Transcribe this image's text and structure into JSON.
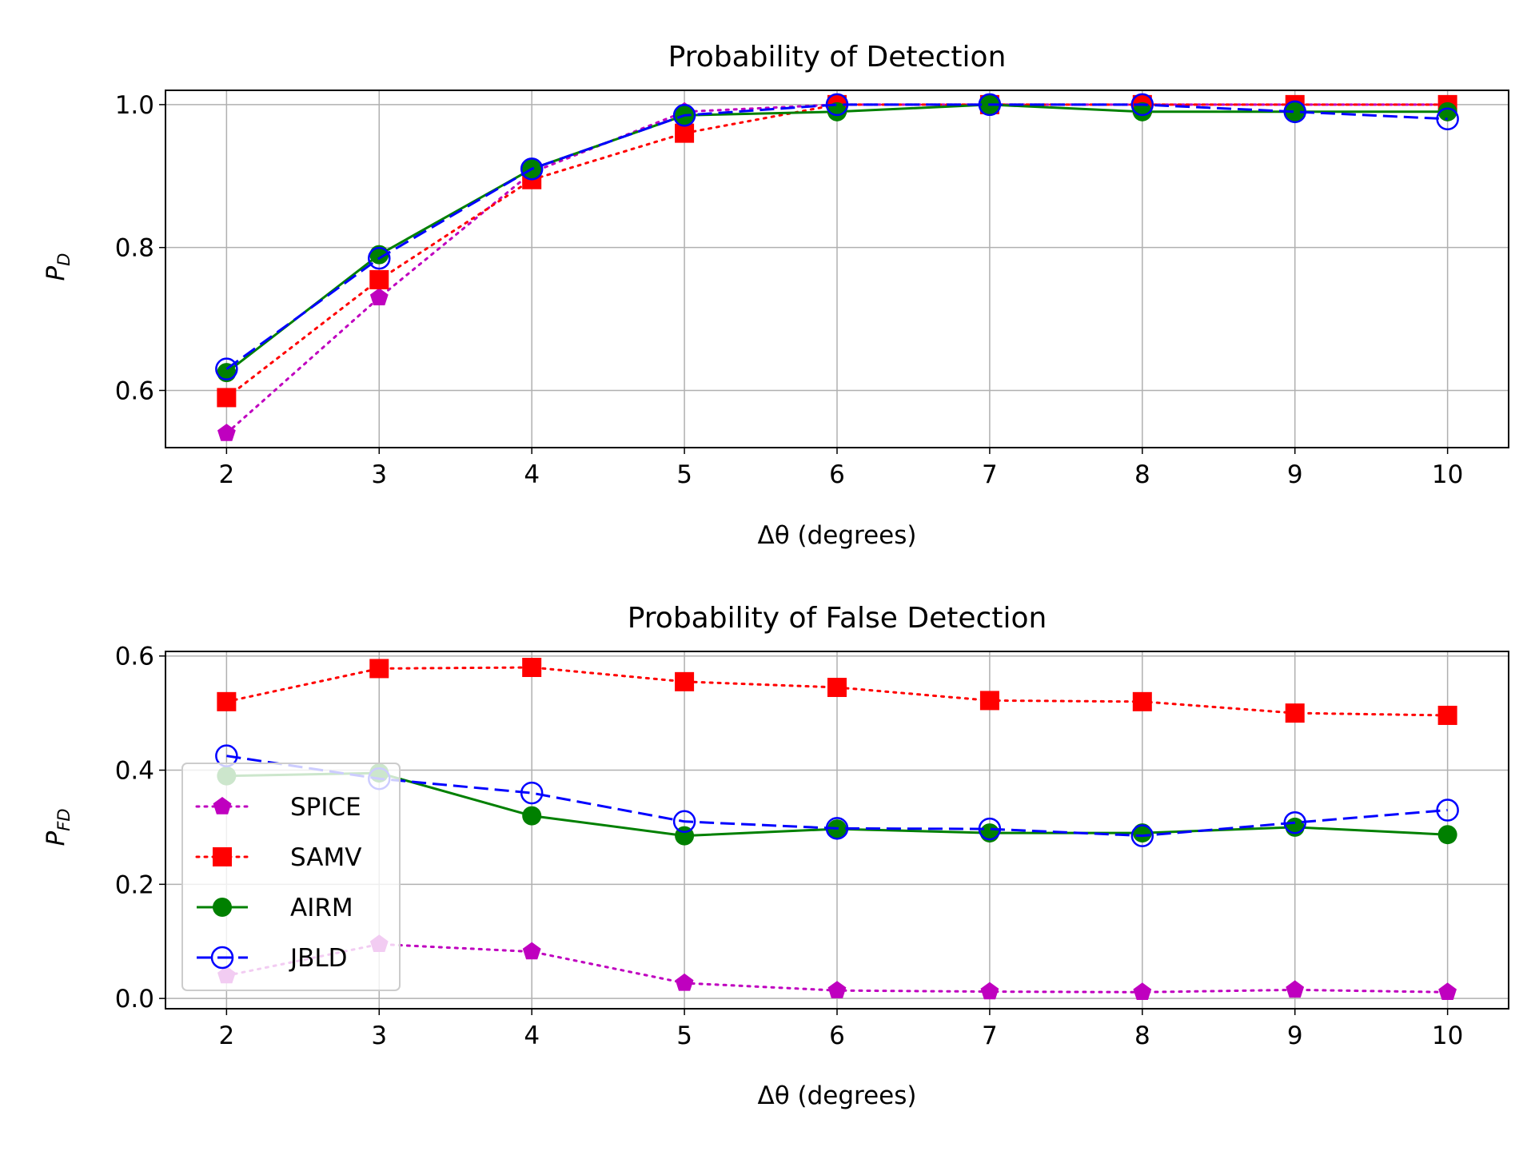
{
  "chart_data": [
    {
      "type": "line",
      "title": "Probability of Detection",
      "xlabel": "Δθ (degrees)",
      "ylabel": {
        "base": "P",
        "sub": "D"
      },
      "x": [
        2,
        3,
        4,
        5,
        6,
        7,
        8,
        9,
        10
      ],
      "xticks": [
        "2",
        "3",
        "4",
        "5",
        "6",
        "7",
        "8",
        "9",
        "10"
      ],
      "yticks": [
        {
          "v": 0.6,
          "label": "0.6"
        },
        {
          "v": 0.8,
          "label": "0.8"
        },
        {
          "v": 1.0,
          "label": "1.0"
        }
      ],
      "xlim": [
        1.6,
        10.4
      ],
      "ylim": [
        0.52,
        1.02
      ],
      "grid": true,
      "series": [
        {
          "name": "SPICE",
          "color": "#bf00bf",
          "line": "dotted",
          "marker": "pentagon",
          "values": [
            0.54,
            0.73,
            0.905,
            0.99,
            1.0,
            1.0,
            1.0,
            1.0,
            1.0
          ]
        },
        {
          "name": "SAMV",
          "color": "#ff0000",
          "line": "dotted",
          "marker": "square",
          "values": [
            0.59,
            0.755,
            0.895,
            0.96,
            1.0,
            1.0,
            1.0,
            1.0,
            1.0
          ]
        },
        {
          "name": "AIRM",
          "color": "#008000",
          "line": "solid",
          "marker": "circle",
          "values": [
            0.625,
            0.79,
            0.91,
            0.985,
            0.99,
            1.0,
            0.99,
            0.99,
            0.99
          ]
        },
        {
          "name": "JBLD",
          "color": "#0000ff",
          "line": "dashed",
          "marker": "open-circle",
          "values": [
            0.63,
            0.785,
            0.91,
            0.985,
            1.0,
            1.0,
            1.0,
            0.99,
            0.98
          ]
        }
      ]
    },
    {
      "type": "line",
      "title": "Probability of False Detection",
      "xlabel": "Δθ (degrees)",
      "ylabel": {
        "base": "P",
        "sub": "FD"
      },
      "x": [
        2,
        3,
        4,
        5,
        6,
        7,
        8,
        9,
        10
      ],
      "xticks": [
        "2",
        "3",
        "4",
        "5",
        "6",
        "7",
        "8",
        "9",
        "10"
      ],
      "yticks": [
        {
          "v": 0.0,
          "label": "0.0"
        },
        {
          "v": 0.2,
          "label": "0.2"
        },
        {
          "v": 0.4,
          "label": "0.4"
        },
        {
          "v": 0.6,
          "label": "0.6"
        }
      ],
      "xlim": [
        1.6,
        10.4
      ],
      "ylim": [
        -0.018,
        0.608
      ],
      "grid": true,
      "legend": "center-left",
      "series": [
        {
          "name": "SPICE",
          "color": "#bf00bf",
          "line": "dotted",
          "marker": "pentagon",
          "values": [
            0.04,
            0.095,
            0.082,
            0.027,
            0.014,
            0.012,
            0.011,
            0.015,
            0.011
          ]
        },
        {
          "name": "SAMV",
          "color": "#ff0000",
          "line": "dotted",
          "marker": "square",
          "values": [
            0.52,
            0.578,
            0.58,
            0.555,
            0.545,
            0.522,
            0.52,
            0.5,
            0.496
          ]
        },
        {
          "name": "AIRM",
          "color": "#008000",
          "line": "solid",
          "marker": "circle",
          "values": [
            0.39,
            0.395,
            0.32,
            0.285,
            0.297,
            0.29,
            0.29,
            0.3,
            0.287
          ]
        },
        {
          "name": "JBLD",
          "color": "#0000ff",
          "line": "dashed",
          "marker": "open-circle",
          "values": [
            0.425,
            0.385,
            0.36,
            0.31,
            0.298,
            0.297,
            0.285,
            0.308,
            0.33
          ]
        }
      ]
    }
  ]
}
